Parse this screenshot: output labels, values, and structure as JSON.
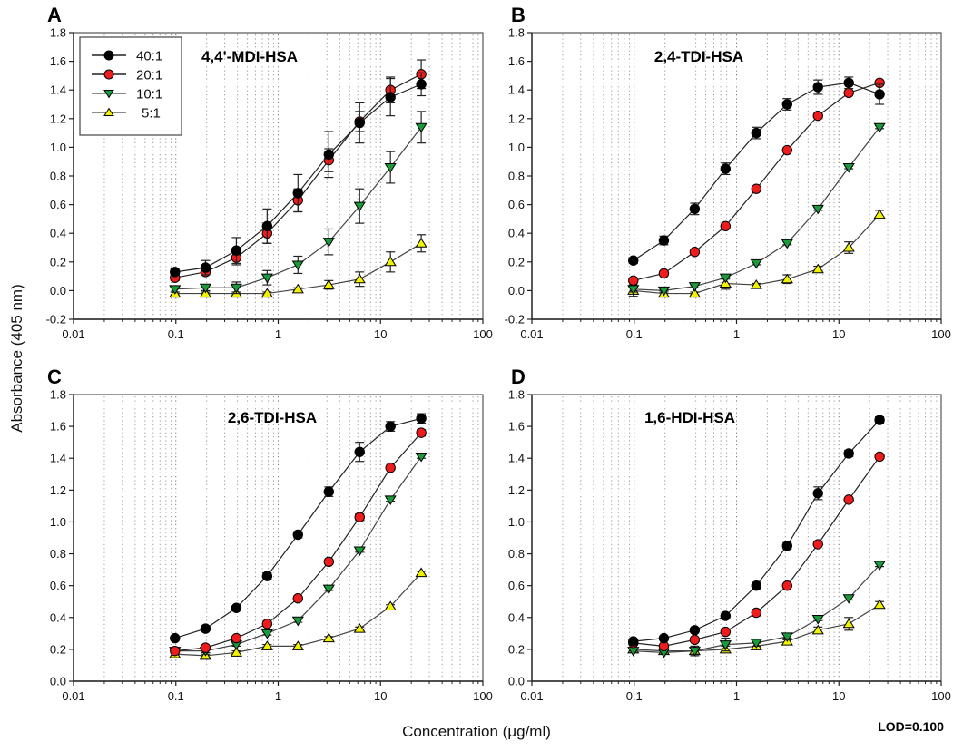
{
  "chart_data": {
    "type": "line",
    "figure": {
      "ylabel": "Absorbance (405 nm)",
      "xlabel": "Concentration (μg/ml)",
      "annotation": "LOD=0.100",
      "xscale": "log"
    },
    "legend": {
      "placement": "top-left of panel A",
      "entries": [
        {
          "name": "40:1",
          "marker": "circle",
          "color": "#000000"
        },
        {
          "name": "20:1",
          "marker": "circle",
          "color": "#ee1c1c"
        },
        {
          "name": "10:1",
          "marker": "triangle-down",
          "color": "#1a9a3a"
        },
        {
          "name": "5:1",
          "marker": "triangle-up",
          "color": "#f2f200"
        }
      ]
    },
    "panels": [
      {
        "letter": "A",
        "title": "4,4'-MDI-HSA",
        "xlim": [
          0.01,
          100
        ],
        "ylim": [
          -0.2,
          1.8
        ],
        "xticks": [
          "0.01",
          "0.1",
          "1",
          "10",
          "100"
        ],
        "yticks": [
          "-0.2",
          "0.0",
          "0.2",
          "0.4",
          "0.6",
          "0.8",
          "1.0",
          "1.2",
          "1.4",
          "1.6",
          "1.8"
        ],
        "grid": "vertical dotted (log minor)",
        "x": [
          0.098,
          0.195,
          0.39,
          0.78,
          1.56,
          3.125,
          6.25,
          12.5,
          25
        ],
        "series": [
          {
            "name": "40:1",
            "values": [
              0.13,
              0.16,
              0.28,
              0.45,
              0.68,
              0.95,
              1.17,
              1.35,
              1.44
            ],
            "errors": [
              0.02,
              0.05,
              0.09,
              0.12,
              0.13,
              0.16,
              0.14,
              0.13,
              0.08
            ]
          },
          {
            "name": "20:1",
            "values": [
              0.09,
              0.13,
              0.23,
              0.4,
              0.63,
              0.91,
              1.18,
              1.4,
              1.51
            ],
            "errors": [
              0.02,
              0.02,
              0.05,
              0.07,
              0.08,
              0.08,
              0.07,
              0.09,
              0.1
            ]
          },
          {
            "name": "10:1",
            "values": [
              0.01,
              0.02,
              0.02,
              0.09,
              0.18,
              0.34,
              0.59,
              0.86,
              1.14
            ],
            "errors": [
              0.02,
              0.02,
              0.04,
              0.05,
              0.06,
              0.09,
              0.12,
              0.11,
              0.11
            ]
          },
          {
            "name": "5:1",
            "values": [
              -0.02,
              -0.02,
              -0.02,
              -0.02,
              0.01,
              0.04,
              0.08,
              0.2,
              0.33
            ],
            "errors": [
              0.01,
              0.01,
              0.01,
              0.01,
              0.01,
              0.03,
              0.05,
              0.07,
              0.06
            ]
          }
        ]
      },
      {
        "letter": "B",
        "title": "2,4-TDI-HSA",
        "xlim": [
          0.01,
          100
        ],
        "ylim": [
          -0.2,
          1.8
        ],
        "xticks": [
          "0.01",
          "0.1",
          "1",
          "10",
          "100"
        ],
        "yticks": [
          "-0.2",
          "0.0",
          "0.2",
          "0.4",
          "0.6",
          "0.8",
          "1.0",
          "1.2",
          "1.4",
          "1.6",
          "1.8"
        ],
        "grid": "vertical dotted (log minor)",
        "x": [
          0.098,
          0.195,
          0.39,
          0.78,
          1.56,
          3.125,
          6.25,
          12.5,
          25
        ],
        "series": [
          {
            "name": "40:1",
            "values": [
              0.21,
              0.35,
              0.57,
              0.85,
              1.1,
              1.3,
              1.42,
              1.45,
              1.37
            ],
            "errors": [
              0.02,
              0.03,
              0.04,
              0.04,
              0.04,
              0.04,
              0.05,
              0.04,
              0.07
            ]
          },
          {
            "name": "20:1",
            "values": [
              0.07,
              0.12,
              0.27,
              0.45,
              0.71,
              0.98,
              1.22,
              1.38,
              1.45
            ],
            "errors": [
              0.01,
              0.01,
              0.01,
              0.01,
              0.01,
              0.01,
              0.01,
              0.01,
              0.01
            ]
          },
          {
            "name": "10:1",
            "values": [
              0.01,
              0.0,
              0.03,
              0.09,
              0.19,
              0.33,
              0.57,
              0.86,
              1.14
            ],
            "errors": [
              0.02,
              0.01,
              0.01,
              0.01,
              0.01,
              0.01,
              0.01,
              0.01,
              0.01
            ]
          },
          {
            "name": "5:1",
            "values": [
              0.0,
              -0.02,
              -0.02,
              0.05,
              0.04,
              0.08,
              0.15,
              0.3,
              0.53
            ],
            "errors": [
              0.04,
              0.02,
              0.01,
              0.04,
              0.01,
              0.03,
              0.02,
              0.04,
              0.03
            ]
          }
        ]
      },
      {
        "letter": "C",
        "title": "2,6-TDI-HSA",
        "xlim": [
          0.01,
          100
        ],
        "ylim": [
          0.0,
          1.8
        ],
        "xticks": [
          "0.01",
          "0.1",
          "1",
          "10",
          "100"
        ],
        "yticks": [
          "0.0",
          "0.2",
          "0.4",
          "0.6",
          "0.8",
          "1.0",
          "1.2",
          "1.4",
          "1.6",
          "1.8"
        ],
        "grid": "vertical dotted (log minor)",
        "x": [
          0.098,
          0.195,
          0.39,
          0.78,
          1.56,
          3.125,
          6.25,
          12.5,
          25
        ],
        "series": [
          {
            "name": "40:1",
            "values": [
              0.27,
              0.33,
              0.46,
              0.66,
              0.92,
              1.19,
              1.44,
              1.6,
              1.65
            ],
            "errors": [
              0.01,
              0.01,
              0.01,
              0.02,
              0.02,
              0.03,
              0.06,
              0.03,
              0.03
            ]
          },
          {
            "name": "20:1",
            "values": [
              0.19,
              0.21,
              0.27,
              0.36,
              0.52,
              0.75,
              1.03,
              1.34,
              1.56
            ],
            "errors": [
              0.01,
              0.01,
              0.01,
              0.01,
              0.01,
              0.01,
              0.02,
              0.01,
              0.02
            ]
          },
          {
            "name": "10:1",
            "values": [
              0.19,
              0.19,
              0.23,
              0.3,
              0.38,
              0.58,
              0.82,
              1.14,
              1.41
            ],
            "errors": [
              0.01,
              0.01,
              0.01,
              0.01,
              0.01,
              0.01,
              0.01,
              0.01,
              0.01
            ]
          },
          {
            "name": "5:1",
            "values": [
              0.17,
              0.16,
              0.18,
              0.22,
              0.22,
              0.27,
              0.33,
              0.47,
              0.68
            ],
            "errors": [
              0.01,
              0.01,
              0.01,
              0.01,
              0.01,
              0.01,
              0.01,
              0.01,
              0.01
            ]
          }
        ]
      },
      {
        "letter": "D",
        "title": "1,6-HDI-HSA",
        "xlim": [
          0.01,
          100
        ],
        "ylim": [
          0.0,
          1.8
        ],
        "xticks": [
          "0.01",
          "0.1",
          "1",
          "10",
          "100"
        ],
        "yticks": [
          "0.0",
          "0.2",
          "0.4",
          "0.6",
          "0.8",
          "1.0",
          "1.2",
          "1.4",
          "1.6",
          "1.8"
        ],
        "grid": "vertical dotted (log minor)",
        "x": [
          0.098,
          0.195,
          0.39,
          0.78,
          1.56,
          3.125,
          6.25,
          12.5,
          25
        ],
        "series": [
          {
            "name": "40:1",
            "values": [
              0.25,
              0.27,
              0.32,
              0.41,
              0.6,
              0.85,
              1.18,
              1.43,
              1.64
            ],
            "errors": [
              0.01,
              0.01,
              0.01,
              0.01,
              0.02,
              0.02,
              0.04,
              0.02,
              0.02
            ]
          },
          {
            "name": "20:1",
            "values": [
              0.24,
              0.22,
              0.26,
              0.31,
              0.43,
              0.6,
              0.86,
              1.14,
              1.41
            ],
            "errors": [
              0.01,
              0.01,
              0.01,
              0.01,
              0.02,
              0.01,
              0.01,
              0.01,
              0.01
            ]
          },
          {
            "name": "10:1",
            "values": [
              0.19,
              0.18,
              0.19,
              0.23,
              0.24,
              0.28,
              0.39,
              0.52,
              0.73
            ],
            "errors": [
              0.01,
              0.01,
              0.02,
              0.04,
              0.02,
              0.02,
              0.01,
              0.01,
              0.01
            ]
          },
          {
            "name": "5:1",
            "values": [
              0.2,
              0.19,
              0.19,
              0.2,
              0.22,
              0.25,
              0.32,
              0.36,
              0.48
            ],
            "errors": [
              0.01,
              0.01,
              0.03,
              0.02,
              0.02,
              0.02,
              0.02,
              0.04,
              0.02
            ]
          }
        ]
      }
    ]
  }
}
